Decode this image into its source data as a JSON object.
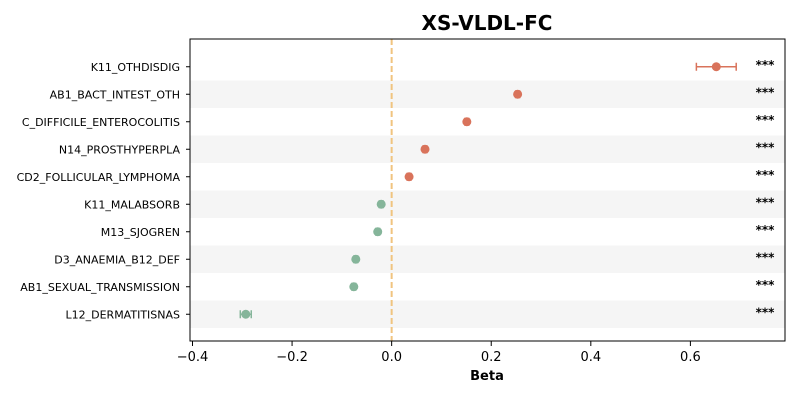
{
  "chart_data": {
    "type": "scatter",
    "title": "XS-VLDL-FC",
    "xlabel": "Beta",
    "xlim": [
      -0.405,
      0.79
    ],
    "xticks": [
      -0.4,
      -0.2,
      0.0,
      0.2,
      0.4,
      0.6
    ],
    "xtick_labels": [
      "−0.4",
      "−0.2",
      "0.0",
      "0.2",
      "0.4",
      "0.6"
    ],
    "reference_line_x": 0,
    "positive_color": "#d9735b",
    "negative_color": "#85b59a",
    "ref_line_color": "#f0c47f",
    "stripe_color": "#f5f5f5",
    "categories": [
      "K11_OTHDISDIG",
      "AB1_BACT_INTEST_OTH",
      "C_DIFFICILE_ENTEROCOLITIS",
      "N14_PROSTHYPERPLA",
      "CD2_FOLLICULAR_LYMPHOMA",
      "K11_MALABSORB",
      "M13_SJOGREN",
      "D3_ANAEMIA_B12_DEF",
      "AB1_SEXUAL_TRANSMISSION",
      "L12_DERMATITISNAS"
    ],
    "beta": [
      0.652,
      0.253,
      0.151,
      0.067,
      0.035,
      -0.021,
      -0.028,
      -0.072,
      -0.076,
      -0.293
    ],
    "ci_low": [
      0.612,
      0.249,
      0.147,
      0.063,
      0.031,
      -0.025,
      -0.032,
      -0.076,
      -0.08,
      -0.304
    ],
    "ci_high": [
      0.692,
      0.257,
      0.155,
      0.071,
      0.039,
      -0.017,
      -0.024,
      -0.068,
      -0.072,
      -0.282
    ],
    "significance": [
      "***",
      "***",
      "***",
      "***",
      "***",
      "***",
      "***",
      "***",
      "***",
      "***"
    ]
  }
}
